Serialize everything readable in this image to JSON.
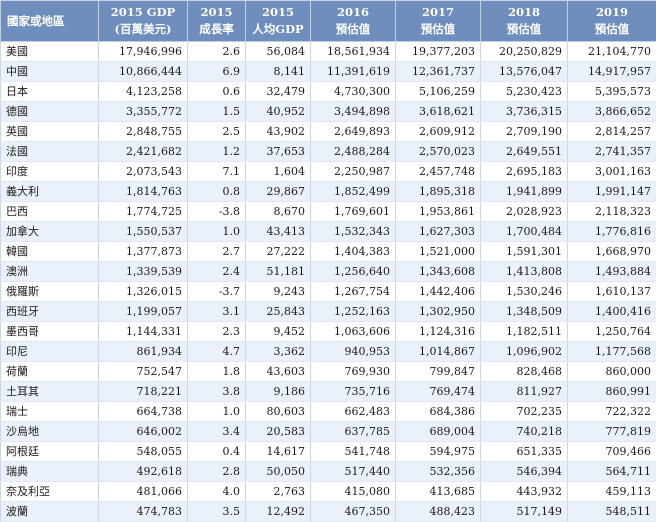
{
  "table": {
    "headers": [
      {
        "line1": "國家或地區",
        "line2": ""
      },
      {
        "line1": "2015 GDP",
        "line2": "(百萬美元)"
      },
      {
        "line1": "2015",
        "line2": "成長率"
      },
      {
        "line1": "2015",
        "line2": "人均GDP"
      },
      {
        "line1": "2016",
        "line2": "預估值"
      },
      {
        "line1": "2017",
        "line2": "預估值"
      },
      {
        "line1": "2018",
        "line2": "預估值"
      },
      {
        "line1": "2019",
        "line2": "預估值"
      }
    ],
    "rows": [
      [
        "美國",
        "17,946,996",
        "2.6",
        "56,084",
        "18,561,934",
        "19,377,203",
        "20,250,829",
        "21,104,770"
      ],
      [
        "中國",
        "10,866,444",
        "6.9",
        "8,141",
        "11,391,619",
        "12,361,737",
        "13,576,047",
        "14,917,957"
      ],
      [
        "日本",
        "4,123,258",
        "0.6",
        "32,479",
        "4,730,300",
        "5,106,259",
        "5,230,423",
        "5,395,573"
      ],
      [
        "德國",
        "3,355,772",
        "1.5",
        "40,952",
        "3,494,898",
        "3,618,621",
        "3,736,315",
        "3,866,652"
      ],
      [
        "英國",
        "2,848,755",
        "2.5",
        "43,902",
        "2,649,893",
        "2,609,912",
        "2,709,190",
        "2,814,257"
      ],
      [
        "法國",
        "2,421,682",
        "1.2",
        "37,653",
        "2,488,284",
        "2,570,023",
        "2,649,551",
        "2,741,357"
      ],
      [
        "印度",
        "2,073,543",
        "7.1",
        "1,604",
        "2,250,987",
        "2,457,748",
        "2,695,183",
        "3,001,163"
      ],
      [
        "義大利",
        "1,814,763",
        "0.8",
        "29,867",
        "1,852,499",
        "1,895,318",
        "1,941,899",
        "1,991,147"
      ],
      [
        "巴西",
        "1,774,725",
        "-3.8",
        "8,670",
        "1,769,601",
        "1,953,861",
        "2,028,923",
        "2,118,323"
      ],
      [
        "加拿大",
        "1,550,537",
        "1.0",
        "43,413",
        "1,532,343",
        "1,627,303",
        "1,700,484",
        "1,776,816"
      ],
      [
        "韓國",
        "1,377,873",
        "2.7",
        "27,222",
        "1,404,383",
        "1,521,000",
        "1,591,301",
        "1,668,970"
      ],
      [
        "澳洲",
        "1,339,539",
        "2.4",
        "51,181",
        "1,256,640",
        "1,343,608",
        "1,413,808",
        "1,493,884"
      ],
      [
        "俄羅斯",
        "1,326,015",
        "-3.7",
        "9,243",
        "1,267,754",
        "1,442,406",
        "1,530,246",
        "1,610,137"
      ],
      [
        "西班牙",
        "1,199,057",
        "3.1",
        "25,843",
        "1,252,163",
        "1,302,950",
        "1,348,509",
        "1,400,416"
      ],
      [
        "墨西哥",
        "1,144,331",
        "2.3",
        "9,452",
        "1,063,606",
        "1,124,316",
        "1,182,511",
        "1,250,764"
      ],
      [
        "印尼",
        "861,934",
        "4.7",
        "3,362",
        "940,953",
        "1,014,867",
        "1,096,902",
        "1,177,568"
      ],
      [
        "荷蘭",
        "752,547",
        "1.8",
        "43,603",
        "769,930",
        "799,847",
        "828,468",
        "860,000"
      ],
      [
        "土耳其",
        "718,221",
        "3.8",
        "9,186",
        "735,716",
        "769,474",
        "811,927",
        "860,991"
      ],
      [
        "瑞士",
        "664,738",
        "1.0",
        "80,603",
        "662,483",
        "684,386",
        "702,235",
        "722,322"
      ],
      [
        "沙烏地",
        "646,002",
        "3.4",
        "20,583",
        "637,785",
        "689,004",
        "740,218",
        "777,819"
      ],
      [
        "阿根廷",
        "548,055",
        "0.4",
        "14,617",
        "541,748",
        "594,975",
        "651,335",
        "709,466"
      ],
      [
        "瑞典",
        "492,618",
        "2.8",
        "50,050",
        "517,440",
        "532,356",
        "546,394",
        "564,711"
      ],
      [
        "奈及利亞",
        "481,066",
        "4.0",
        "2,763",
        "415,080",
        "413,685",
        "443,932",
        "459,113"
      ],
      [
        "波蘭",
        "474,783",
        "3.5",
        "12,492",
        "467,350",
        "488,423",
        "517,149",
        "548,511"
      ]
    ]
  }
}
